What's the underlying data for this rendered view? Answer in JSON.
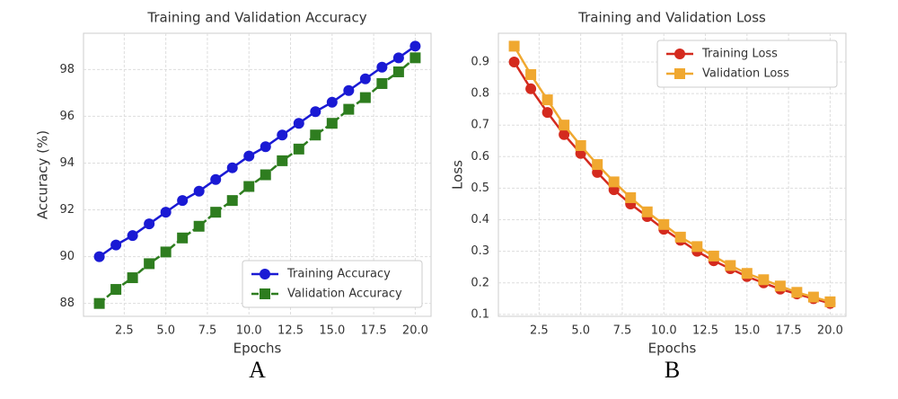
{
  "chart_data": [
    {
      "type": "line",
      "title": "Training and Validation Accuracy",
      "xlabel": "Epochs",
      "ylabel": "Accuracy (%)",
      "caption": "A",
      "x": [
        1,
        2,
        3,
        4,
        5,
        6,
        7,
        8,
        9,
        10,
        11,
        12,
        13,
        14,
        15,
        16,
        17,
        18,
        19,
        20
      ],
      "series": [
        {
          "name": "Training Accuracy",
          "color": "#1a1ad4",
          "marker": "circle",
          "dashed": false,
          "values": [
            90.0,
            90.5,
            90.9,
            91.4,
            91.9,
            92.4,
            92.8,
            93.3,
            93.8,
            94.3,
            94.7,
            95.2,
            95.7,
            96.2,
            96.6,
            97.1,
            97.6,
            98.1,
            98.5,
            99.0
          ]
        },
        {
          "name": "Validation Accuracy",
          "color": "#2e7d1f",
          "marker": "square",
          "dashed": true,
          "values": [
            88.0,
            88.6,
            89.1,
            89.7,
            90.2,
            90.8,
            91.3,
            91.9,
            92.4,
            93.0,
            93.5,
            94.1,
            94.6,
            95.2,
            95.7,
            96.3,
            96.8,
            97.4,
            97.9,
            98.5
          ]
        }
      ],
      "xlim": [
        0.05,
        20.95
      ],
      "ylim": [
        87.45,
        99.55
      ],
      "xticks": [
        2.5,
        {
          "value": 5,
          "label": "5.0"
        },
        7.5,
        {
          "value": 10,
          "label": "10.0"
        },
        12.5,
        {
          "value": 15,
          "label": "15.0"
        },
        17.5,
        {
          "value": 20,
          "label": "20.0"
        }
      ],
      "yticks": [
        88,
        90,
        92,
        94,
        96,
        98
      ],
      "grid": true,
      "legend": "lower right"
    },
    {
      "type": "line",
      "title": "Training and Validation Loss",
      "xlabel": "Epochs",
      "ylabel": "Loss",
      "caption": "B",
      "x": [
        1,
        2,
        3,
        4,
        5,
        6,
        7,
        8,
        9,
        10,
        11,
        12,
        13,
        14,
        15,
        16,
        17,
        18,
        19,
        20
      ],
      "series": [
        {
          "name": "Training Loss",
          "color": "#d42a1e",
          "marker": "circle",
          "dashed": false,
          "values": [
            0.9,
            0.815,
            0.74,
            0.67,
            0.61,
            0.55,
            0.495,
            0.45,
            0.41,
            0.37,
            0.335,
            0.3,
            0.27,
            0.245,
            0.22,
            0.2,
            0.18,
            0.165,
            0.15,
            0.135
          ]
        },
        {
          "name": "Validation Loss",
          "color": "#f0a830",
          "marker": "square",
          "dashed": false,
          "values": [
            0.95,
            0.86,
            0.78,
            0.7,
            0.635,
            0.575,
            0.52,
            0.47,
            0.425,
            0.385,
            0.345,
            0.315,
            0.285,
            0.255,
            0.23,
            0.21,
            0.19,
            0.17,
            0.155,
            0.14
          ]
        }
      ],
      "xlim": [
        0.05,
        20.95
      ],
      "ylim": [
        0.094,
        0.991
      ],
      "xticks": [
        2.5,
        {
          "value": 5,
          "label": "5.0"
        },
        7.5,
        {
          "value": 10,
          "label": "10.0"
        },
        12.5,
        {
          "value": 15,
          "label": "15.0"
        },
        17.5,
        {
          "value": 20,
          "label": "20.0"
        }
      ],
      "yticks": [
        0.1,
        0.2,
        0.3,
        0.4,
        0.5,
        0.6,
        0.7,
        0.8,
        0.9
      ],
      "grid": true,
      "legend": "upper right"
    }
  ]
}
